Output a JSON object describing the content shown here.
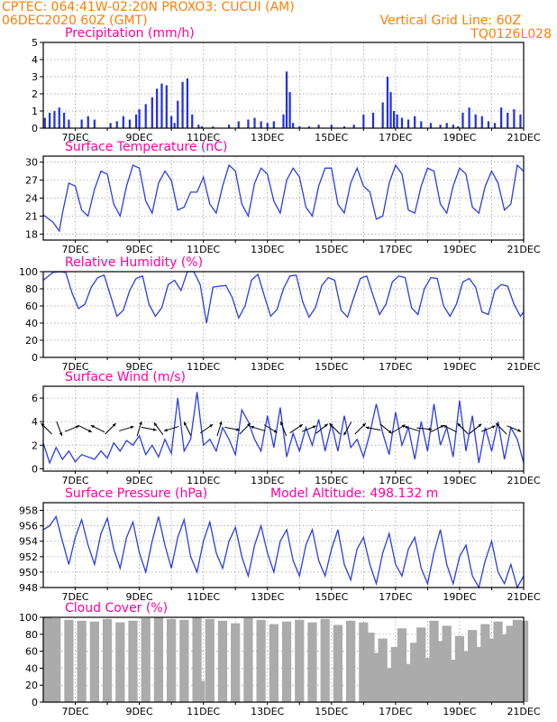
{
  "header": {
    "left_line1": "CPTEC:  064:41W-02:20N  PROXO3: CUCUI (AM)",
    "left_line2": "06DEC2020 60Z (GMT)",
    "right_line1": "Vertical Grid Line: 60Z",
    "right_line2": "TQ0126L028"
  },
  "colors": {
    "header": "#ff7f00",
    "panel_title": "#ff00a0",
    "series_line": "#2a3ee0",
    "bars": "#1f2fe6",
    "cloud_fill": "#ababab"
  },
  "chart_data": [
    {
      "type": "bar",
      "title": "Precipitation (mm/h)",
      "x_ticks": [
        "7DEC",
        "9DEC",
        "11DEC",
        "13DEC",
        "15DEC",
        "17DEC",
        "19DEC",
        "21DEC"
      ],
      "ylim": [
        0,
        5
      ],
      "y_ticks": [
        0,
        1,
        2,
        3,
        4,
        5
      ],
      "grid": true,
      "x": [
        6.05,
        6.2,
        6.35,
        6.5,
        6.65,
        6.8,
        7.2,
        7.4,
        7.6,
        8.1,
        8.3,
        8.5,
        8.7,
        8.9,
        9.0,
        9.2,
        9.4,
        9.55,
        9.7,
        9.85,
        10.0,
        10.1,
        10.2,
        10.35,
        10.5,
        10.65,
        10.85,
        10.95,
        11.3,
        11.8,
        12.1,
        12.4,
        12.6,
        12.8,
        13.0,
        13.2,
        13.5,
        13.6,
        13.7,
        13.8,
        14.0,
        14.3,
        14.6,
        15.0,
        15.4,
        15.7,
        16.0,
        16.3,
        16.6,
        16.75,
        16.85,
        16.95,
        17.05,
        17.2,
        17.4,
        17.6,
        17.8,
        18.1,
        18.4,
        18.6,
        18.8,
        18.95,
        19.1,
        19.3,
        19.5,
        19.7,
        19.9,
        20.1,
        20.3,
        20.5,
        20.7,
        20.9
      ],
      "values": [
        0.6,
        0.9,
        1.0,
        1.2,
        0.9,
        0.5,
        0.5,
        0.7,
        0.5,
        0.3,
        0.4,
        0.7,
        0.5,
        0.8,
        1.1,
        1.4,
        1.8,
        2.3,
        2.6,
        2.5,
        0.7,
        0.3,
        1.6,
        2.7,
        2.9,
        0.8,
        0.2,
        0.1,
        0.1,
        0.2,
        0.4,
        0.5,
        0.6,
        0.4,
        0.3,
        0.4,
        0.8,
        3.3,
        2.1,
        0.3,
        0.1,
        0.1,
        0.2,
        0.2,
        0.1,
        0.2,
        0.8,
        0.9,
        1.5,
        3.0,
        2.1,
        1.0,
        0.8,
        0.6,
        0.5,
        0.7,
        0.4,
        0.3,
        0.2,
        0.3,
        0.2,
        0.1,
        0.9,
        1.2,
        0.8,
        0.7,
        0.4,
        0.3,
        1.2,
        0.9,
        1.1,
        0.8
      ]
    },
    {
      "type": "line",
      "title": "Surface Temperature (nC)",
      "x_ticks": [
        "7DEC",
        "9DEC",
        "11DEC",
        "13DEC",
        "15DEC",
        "17DEC",
        "19DEC",
        "21DEC"
      ],
      "ylim": [
        17,
        31
      ],
      "y_ticks": [
        18,
        21,
        24,
        27,
        30
      ],
      "grid": true,
      "x": [
        6.0,
        6.3,
        6.5,
        6.6,
        6.8,
        7.0,
        7.2,
        7.4,
        7.6,
        7.8,
        8.0,
        8.2,
        8.4,
        8.6,
        8.8,
        9.0,
        9.2,
        9.4,
        9.6,
        9.8,
        10.0,
        10.2,
        10.4,
        10.6,
        10.8,
        11.0,
        11.2,
        11.4,
        11.6,
        11.8,
        12.0,
        12.2,
        12.4,
        12.6,
        12.8,
        13.0,
        13.2,
        13.4,
        13.6,
        13.8,
        14.0,
        14.2,
        14.4,
        14.6,
        14.8,
        15.0,
        15.2,
        15.4,
        15.6,
        15.8,
        16.0,
        16.2,
        16.4,
        16.6,
        16.8,
        17.0,
        17.2,
        17.4,
        17.6,
        17.8,
        18.0,
        18.2,
        18.4,
        18.6,
        18.8,
        19.0,
        19.2,
        19.4,
        19.6,
        19.8,
        20.0,
        20.2,
        20.4,
        20.6,
        20.8,
        21.0
      ],
      "values": [
        21.2,
        20.0,
        18.5,
        21.5,
        26.5,
        26.0,
        22.0,
        21.0,
        25.5,
        28.5,
        28.0,
        23.0,
        21.0,
        26.0,
        29.5,
        29.0,
        23.5,
        21.5,
        26.5,
        28.5,
        27.0,
        22.0,
        22.5,
        25.0,
        25.0,
        27.5,
        23.0,
        21.5,
        26.0,
        29.5,
        28.5,
        23.0,
        21.0,
        26.5,
        29.0,
        28.0,
        23.5,
        21.5,
        27.0,
        29.0,
        27.5,
        22.5,
        21.0,
        26.0,
        29.0,
        29.0,
        23.0,
        21.5,
        26.5,
        29.0,
        26.0,
        25.0,
        20.5,
        21.0,
        26.5,
        29.5,
        28.0,
        22.0,
        21.5,
        26.0,
        29.0,
        28.5,
        23.0,
        21.5,
        26.0,
        29.0,
        28.0,
        22.5,
        21.5,
        26.0,
        28.5,
        26.5,
        22.0,
        23.0,
        29.5,
        28.5
      ]
    },
    {
      "type": "line",
      "title": "Relative Humidity (%)",
      "x_ticks": [
        "7DEC",
        "9DEC",
        "11DEC",
        "13DEC",
        "15DEC",
        "17DEC",
        "19DEC",
        "21DEC"
      ],
      "ylim": [
        0,
        100
      ],
      "y_ticks": [
        0,
        20,
        40,
        60,
        80,
        100
      ],
      "grid": true,
      "x": [
        6.0,
        6.3,
        6.5,
        6.7,
        6.9,
        7.1,
        7.3,
        7.5,
        7.7,
        7.9,
        8.1,
        8.3,
        8.5,
        8.7,
        8.9,
        9.1,
        9.3,
        9.5,
        9.7,
        9.9,
        10.1,
        10.3,
        10.5,
        10.7,
        10.9,
        11.1,
        11.3,
        11.5,
        11.7,
        11.9,
        12.1,
        12.3,
        12.5,
        12.7,
        12.9,
        13.1,
        13.3,
        13.5,
        13.7,
        13.9,
        14.1,
        14.3,
        14.5,
        14.7,
        14.9,
        15.1,
        15.3,
        15.5,
        15.7,
        15.9,
        16.1,
        16.3,
        16.5,
        16.7,
        16.9,
        17.1,
        17.3,
        17.5,
        17.7,
        17.9,
        18.1,
        18.3,
        18.5,
        18.7,
        18.9,
        19.1,
        19.3,
        19.5,
        19.7,
        19.9,
        20.1,
        20.3,
        20.5,
        20.7,
        20.9,
        21.0
      ],
      "values": [
        90,
        99,
        100,
        99,
        75,
        57,
        62,
        82,
        93,
        96,
        72,
        48,
        55,
        78,
        92,
        95,
        62,
        48,
        58,
        85,
        90,
        78,
        100,
        100,
        85,
        40,
        82,
        83,
        84,
        70,
        46,
        60,
        90,
        97,
        72,
        48,
        56,
        80,
        95,
        96,
        65,
        47,
        58,
        84,
        93,
        90,
        55,
        47,
        70,
        92,
        95,
        72,
        50,
        62,
        88,
        95,
        93,
        58,
        50,
        80,
        93,
        92,
        60,
        48,
        62,
        88,
        92,
        82,
        53,
        50,
        78,
        85,
        83,
        62,
        48,
        53
      ]
    },
    {
      "type": "line",
      "title": "Surface Wind (m/s)",
      "x_ticks": [
        "7DEC",
        "9DEC",
        "11DEC",
        "13DEC",
        "15DEC",
        "17DEC",
        "19DEC",
        "21DEC"
      ],
      "ylim": [
        -0.2,
        7
      ],
      "y_ticks": [
        0,
        2,
        4,
        6
      ],
      "grid": true,
      "x": [
        6.0,
        6.2,
        6.4,
        6.6,
        6.8,
        7.0,
        7.2,
        7.4,
        7.6,
        7.8,
        8.0,
        8.2,
        8.4,
        8.6,
        8.8,
        9.0,
        9.2,
        9.4,
        9.6,
        9.8,
        10.0,
        10.2,
        10.4,
        10.6,
        10.8,
        11.0,
        11.2,
        11.4,
        11.6,
        11.8,
        12.0,
        12.2,
        12.4,
        12.6,
        12.8,
        13.0,
        13.2,
        13.4,
        13.6,
        13.8,
        14.0,
        14.2,
        14.4,
        14.6,
        14.8,
        15.0,
        15.2,
        15.4,
        15.6,
        15.8,
        16.0,
        16.2,
        16.4,
        16.6,
        16.8,
        17.0,
        17.2,
        17.4,
        17.6,
        17.8,
        18.0,
        18.2,
        18.4,
        18.6,
        18.8,
        19.0,
        19.2,
        19.4,
        19.6,
        19.8,
        20.0,
        20.2,
        20.4,
        20.6,
        20.8,
        21.0
      ],
      "values": [
        2.2,
        0.5,
        1.8,
        0.8,
        1.5,
        0.6,
        1.2,
        1.0,
        0.8,
        1.5,
        0.9,
        2.2,
        1.5,
        2.4,
        2.0,
        2.8,
        1.2,
        2.0,
        1.0,
        2.5,
        1.3,
        6.0,
        1.5,
        2.5,
        6.5,
        2.0,
        2.5,
        1.5,
        3.5,
        2.5,
        1.2,
        5.0,
        4.0,
        2.5,
        1.5,
        4.5,
        1.8,
        5.2,
        1.0,
        3.0,
        1.5,
        3.5,
        2.0,
        4.2,
        1.5,
        3.8,
        1.5,
        4.5,
        1.8,
        2.5,
        1.0,
        3.0,
        5.5,
        3.0,
        1.2,
        4.8,
        2.0,
        3.5,
        0.8,
        4.0,
        1.5,
        5.5,
        2.0,
        3.5,
        1.0,
        5.8,
        1.5,
        4.5,
        0.5,
        3.5,
        1.5,
        4.0,
        0.8,
        3.5,
        2.5,
        0.5
      ],
      "vectors": {
        "x": [
          6.1,
          6.5,
          6.9,
          7.3,
          7.7,
          8.1,
          8.6,
          9.0,
          9.3,
          9.6,
          10.0,
          10.5,
          11.1,
          11.5,
          11.9,
          12.3,
          12.7,
          13.1,
          13.5,
          13.9,
          14.3,
          14.7,
          15.1,
          15.5,
          15.9,
          16.3,
          16.7,
          17.1,
          17.5,
          17.9,
          18.3,
          18.7,
          19.1,
          19.5,
          19.9,
          20.3,
          20.7
        ],
        "u": [
          -1,
          0.3,
          1,
          1,
          -1,
          1,
          1,
          0.3,
          1,
          -0.6,
          -1,
          -0.5,
          1,
          0.3,
          1,
          1,
          -1,
          1,
          -0.4,
          0.3,
          1,
          1,
          -1,
          -0.5,
          1,
          -1,
          1,
          1,
          -1,
          1,
          1,
          -0.6,
          -1,
          1,
          1,
          -1,
          1
        ],
        "v": [
          1,
          -0.8,
          0.4,
          -0.5,
          0.5,
          1,
          0.3,
          1,
          -0.2,
          0.8,
          -0.3,
          1,
          0.7,
          1,
          -0.2,
          1,
          0.3,
          -0.6,
          1,
          0.2,
          0.4,
          0.8,
          1,
          -0.9,
          1,
          0.2,
          -0.8,
          0.6,
          0.3,
          -0.1,
          0.5,
          0.3,
          1,
          0.8,
          0.4,
          1,
          -0.4
        ]
      }
    },
    {
      "type": "line",
      "title": "Surface Pressure (hPa)",
      "annotation": "Model Altitude: 498.132 m",
      "x_ticks": [
        "7DEC",
        "9DEC",
        "11DEC",
        "13DEC",
        "15DEC",
        "17DEC",
        "19DEC",
        "21DEC"
      ],
      "ylim": [
        948,
        959
      ],
      "y_ticks": [
        948,
        950,
        952,
        954,
        956,
        958
      ],
      "grid": true,
      "x": [
        6.0,
        6.2,
        6.4,
        6.6,
        6.8,
        7.0,
        7.2,
        7.4,
        7.6,
        7.8,
        8.0,
        8.2,
        8.4,
        8.6,
        8.8,
        9.0,
        9.2,
        9.4,
        9.6,
        9.8,
        10.0,
        10.2,
        10.4,
        10.6,
        10.8,
        11.0,
        11.2,
        11.4,
        11.6,
        11.8,
        12.0,
        12.2,
        12.4,
        12.6,
        12.8,
        13.0,
        13.2,
        13.4,
        13.6,
        13.8,
        14.0,
        14.2,
        14.4,
        14.6,
        14.8,
        15.0,
        15.2,
        15.4,
        15.6,
        15.8,
        16.0,
        16.2,
        16.4,
        16.6,
        16.8,
        17.0,
        17.2,
        17.4,
        17.6,
        17.8,
        18.0,
        18.2,
        18.4,
        18.6,
        18.8,
        19.0,
        19.2,
        19.4,
        19.6,
        19.8,
        20.0,
        20.2,
        20.4,
        20.6,
        20.8,
        21.0
      ],
      "values": [
        955.5,
        956.0,
        957.2,
        954.0,
        951.0,
        954.5,
        956.8,
        953.5,
        951.0,
        955.0,
        957.0,
        953.0,
        950.5,
        954.5,
        956.5,
        952.5,
        950.0,
        954.0,
        957.2,
        953.5,
        950.5,
        954.5,
        956.8,
        952.0,
        950.0,
        954.0,
        956.5,
        952.5,
        950.5,
        954.0,
        955.8,
        952.0,
        949.5,
        953.5,
        956.0,
        952.5,
        950.0,
        954.0,
        955.5,
        951.5,
        949.5,
        953.5,
        955.5,
        951.5,
        949.5,
        953.0,
        955.5,
        951.0,
        949.0,
        953.0,
        954.5,
        951.0,
        948.5,
        952.5,
        955.0,
        951.0,
        949.5,
        953.0,
        954.5,
        950.5,
        948.5,
        952.5,
        955.5,
        951.0,
        948.5,
        952.0,
        953.5,
        949.5,
        948.0,
        951.5,
        954.0,
        950.0,
        948.5,
        951.0,
        948.0,
        949.5
      ]
    },
    {
      "type": "area",
      "title": "Cloud Cover (%)",
      "x_ticks": [
        "7DEC",
        "9DEC",
        "11DEC",
        "13DEC",
        "15DEC",
        "17DEC",
        "19DEC",
        "21DEC"
      ],
      "ylim": [
        0,
        100
      ],
      "y_ticks": [
        0,
        20,
        40,
        60,
        80,
        100
      ],
      "grid": true,
      "x": [
        6.0,
        6.4,
        6.8,
        7.2,
        7.6,
        8.0,
        8.4,
        8.8,
        9.2,
        9.6,
        10.0,
        10.4,
        10.8,
        10.9,
        11.0,
        11.2,
        11.6,
        12.0,
        12.4,
        12.8,
        13.2,
        13.6,
        14.0,
        14.4,
        14.8,
        15.2,
        15.6,
        16.0,
        16.2,
        16.4,
        16.6,
        16.8,
        17.0,
        17.2,
        17.4,
        17.6,
        17.8,
        18.0,
        18.2,
        18.4,
        18.6,
        18.8,
        19.0,
        19.2,
        19.4,
        19.6,
        19.8,
        20.0,
        20.2,
        20.4,
        20.6,
        20.8,
        21.0
      ],
      "values": [
        100,
        99,
        97,
        96,
        95,
        98,
        94,
        96,
        99,
        100,
        98,
        97,
        100,
        25,
        0,
        98,
        96,
        93,
        99,
        97,
        92,
        95,
        97,
        94,
        98,
        91,
        96,
        94,
        82,
        58,
        75,
        40,
        65,
        87,
        45,
        70,
        88,
        52,
        96,
        72,
        90,
        50,
        78,
        60,
        85,
        65,
        92,
        75,
        95,
        80,
        90,
        97,
        96
      ]
    }
  ]
}
